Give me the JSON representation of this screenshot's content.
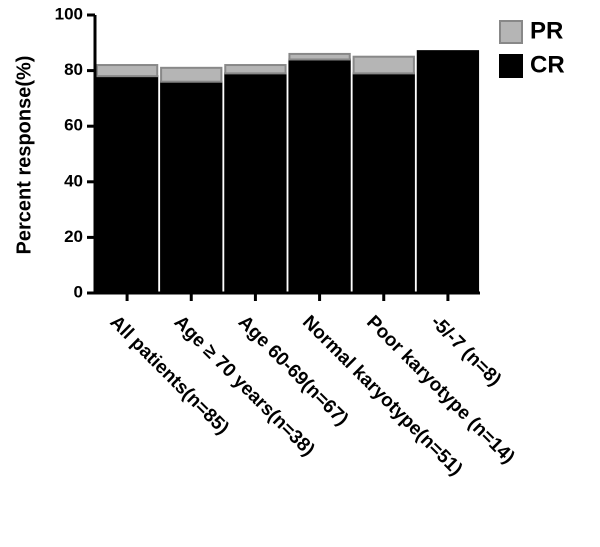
{
  "chart_data": {
    "type": "stacked-bar",
    "y_label": "Percent response(%)",
    "categories": [
      "All patients(n=85)",
      "Age ≥ 70 years(n=38)",
      "Age 60-69(n=67)",
      "Normal karyotype(n=51)",
      "Poor karyotype (n=14)",
      "-5/-7 (n=8)"
    ],
    "series": [
      {
        "name": "CR",
        "color": "#000000",
        "values": [
          78,
          76,
          79,
          84,
          79,
          87
        ]
      },
      {
        "name": "PR",
        "color": "#b5b5b5",
        "values": [
          4,
          5,
          3,
          2,
          6,
          0
        ]
      }
    ],
    "ylim": [
      0,
      100
    ],
    "yticks": [
      0,
      20,
      40,
      60,
      80,
      100
    ],
    "grid": false,
    "legend": "top-right"
  }
}
